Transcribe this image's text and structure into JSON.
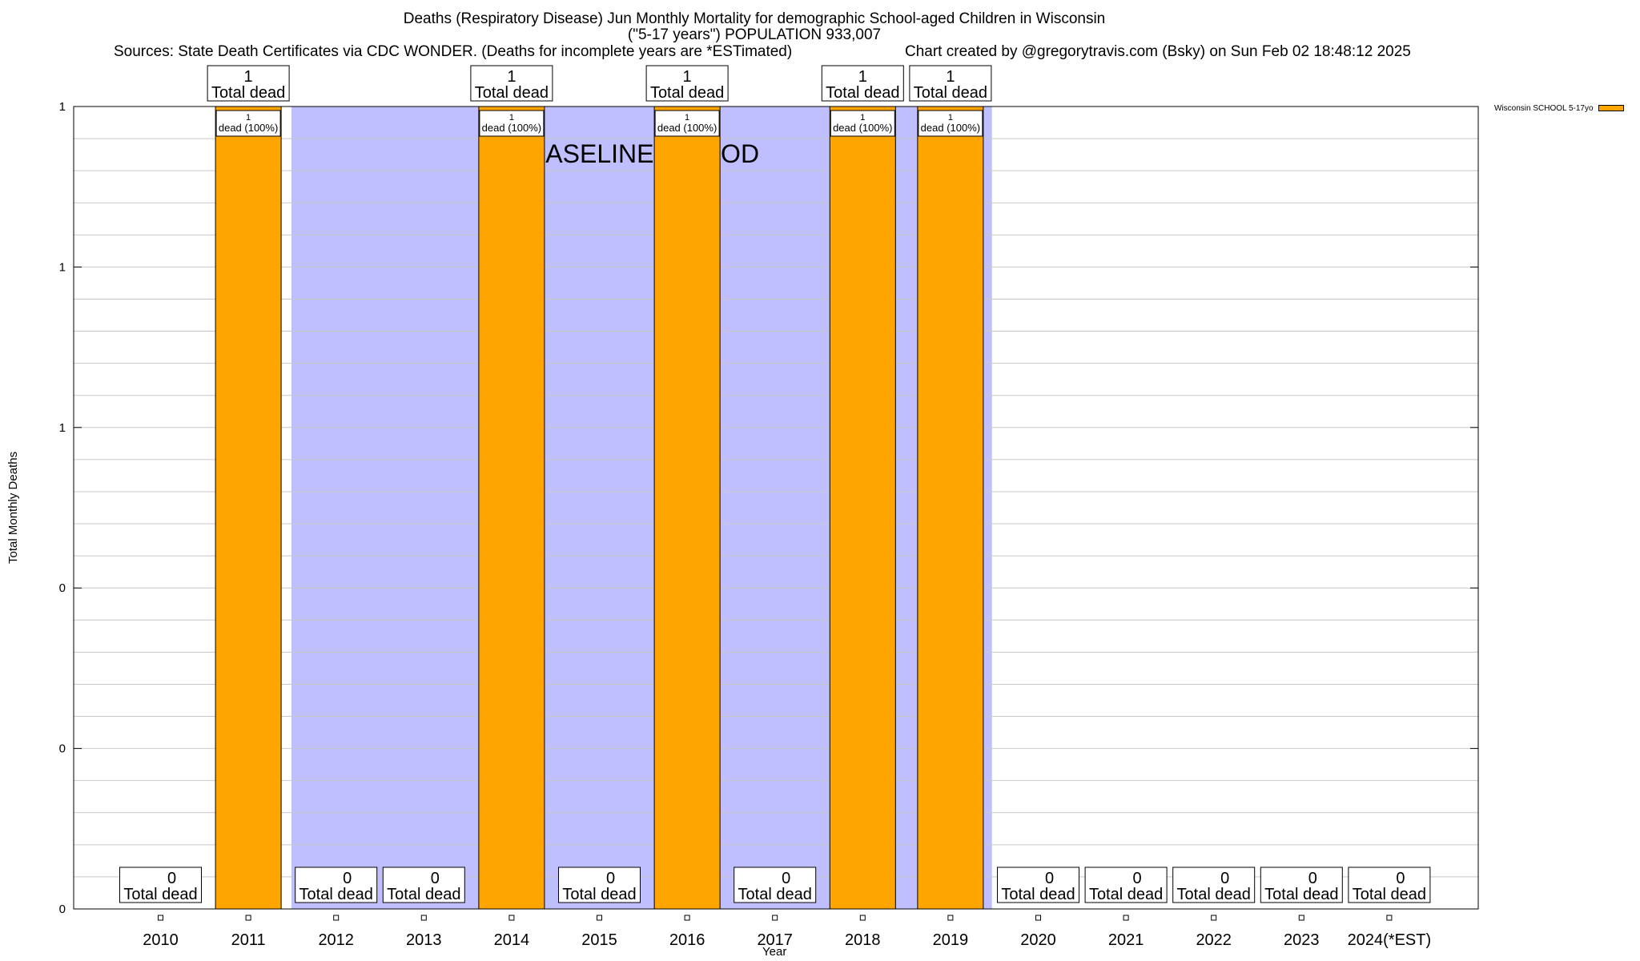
{
  "chart_data": {
    "type": "bar",
    "title": "Deaths (Respiratory Disease) Jun Monthly Mortality for demographic School-aged Children in Wisconsin",
    "subtitle": "(\"5-17 years\") POPULATION 933,007",
    "sources": "Sources: State Death Certificates via CDC WONDER. (Deaths for incomplete years are *ESTimated)",
    "credit": "Chart created by @gregorytravis.com (Bsky) on Sun Feb 02 18:48:12 2025",
    "xlabel": "Year",
    "ylabel": "Total Monthly Deaths",
    "ylim": [
      0,
      1
    ],
    "y_tick_labels": [
      "0",
      "0",
      "0",
      "1",
      "1",
      "1"
    ],
    "categories": [
      "2010",
      "2011",
      "2012",
      "2013",
      "2014",
      "2015",
      "2016",
      "2017",
      "2018",
      "2019",
      "2020",
      "2021",
      "2022",
      "2023",
      "2024(*EST)"
    ],
    "series": [
      {
        "name": "Wisconsin SCHOOL 5-17yo",
        "color": "#FFA500",
        "values": [
          0,
          1,
          0,
          0,
          1,
          0,
          1,
          0,
          1,
          1,
          0,
          0,
          0,
          0,
          0
        ]
      }
    ],
    "total_label": "Total dead",
    "bar_inner_label": "dead (100%)",
    "baseline": {
      "label": "BASELINE PERIOD",
      "from_year": "2012",
      "to_year": "2019",
      "color": "#BFBFFF"
    }
  }
}
